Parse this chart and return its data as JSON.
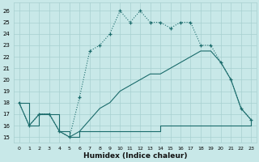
{
  "xlabel": "Humidex (Indice chaleur)",
  "background_color": "#c8e8e8",
  "grid_color": "#a8d0d0",
  "line_color": "#1a6b6b",
  "xlim": [
    -0.5,
    23.5
  ],
  "ylim": [
    14.5,
    26.7
  ],
  "yticks": [
    15,
    16,
    17,
    18,
    19,
    20,
    21,
    22,
    23,
    24,
    25,
    26
  ],
  "xticks": [
    0,
    1,
    2,
    3,
    4,
    5,
    6,
    7,
    8,
    9,
    10,
    11,
    12,
    13,
    14,
    15,
    16,
    17,
    18,
    19,
    20,
    21,
    22,
    23
  ],
  "dotted_x": [
    0,
    1,
    2,
    3,
    4,
    5,
    6,
    7,
    8,
    9,
    10,
    11,
    12,
    13,
    14,
    15,
    16,
    17,
    18,
    19,
    20,
    21,
    22,
    23
  ],
  "dotted_y": [
    18.0,
    16.0,
    17.0,
    17.0,
    15.5,
    15.0,
    18.5,
    22.5,
    23.0,
    24.0,
    26.0,
    25.0,
    26.0,
    25.0,
    25.0,
    24.5,
    25.0,
    25.0,
    23.0,
    23.0,
    21.5,
    20.0,
    17.5,
    16.5
  ],
  "solid1_x": [
    0,
    1,
    2,
    3,
    4,
    5,
    6,
    7,
    8,
    9,
    10,
    11,
    12,
    13,
    14,
    15,
    16,
    17,
    18,
    19,
    20,
    21,
    22,
    23
  ],
  "solid1_y": [
    18.0,
    16.0,
    17.0,
    17.0,
    15.5,
    15.0,
    15.5,
    16.5,
    17.5,
    18.0,
    19.0,
    19.5,
    20.0,
    20.5,
    20.5,
    21.0,
    21.5,
    22.0,
    22.5,
    22.5,
    21.5,
    20.0,
    17.5,
    16.5
  ],
  "solid2_x": [
    0,
    1,
    2,
    3,
    4,
    5,
    6,
    7,
    8,
    9,
    10,
    11,
    12,
    13,
    14,
    15,
    16,
    17,
    18,
    19,
    20,
    21,
    22,
    23
  ],
  "solid2_y": [
    18.0,
    16.0,
    17.0,
    17.0,
    15.5,
    15.0,
    15.5,
    15.5,
    15.5,
    15.5,
    15.5,
    15.5,
    15.5,
    15.5,
    16.0,
    16.0,
    16.0,
    16.0,
    16.0,
    16.0,
    16.0,
    16.0,
    16.0,
    16.5
  ]
}
